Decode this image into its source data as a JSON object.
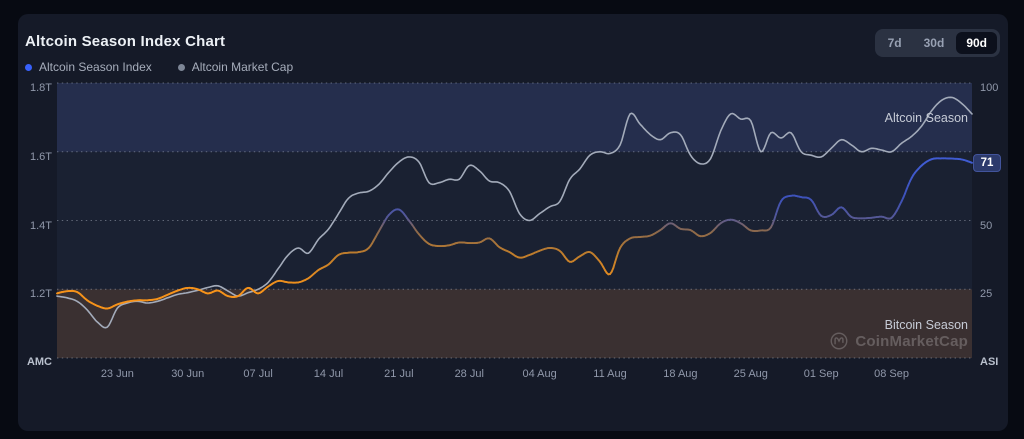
{
  "header": {
    "title": "Altcoin Season Index Chart"
  },
  "legend": [
    {
      "label": "Altcoin Season Index",
      "color": "#3861fb"
    },
    {
      "label": "Altcoin Market Cap",
      "color": "#7d8696"
    }
  ],
  "range_buttons": [
    {
      "label": "7d",
      "active": false
    },
    {
      "label": "30d",
      "active": false
    },
    {
      "label": "90d",
      "active": true
    }
  ],
  "axes": {
    "left_title": "AMC",
    "right_title": "ASI",
    "left_ticks": [
      {
        "label": "1.8T",
        "row": 0
      },
      {
        "label": "1.6T",
        "row": 1
      },
      {
        "label": "1.4T",
        "row": 2
      },
      {
        "label": "1.2T",
        "row": 3
      }
    ],
    "right_ticks": [
      {
        "label": "100",
        "row": 0
      },
      {
        "label": "50",
        "row": 2
      },
      {
        "label": "25",
        "row": 3
      }
    ]
  },
  "watermark": {
    "text": "CoinMarketCap"
  },
  "colors": {
    "plot_bg": "#1a2132",
    "grid": "rgba(170,178,192,0.5)",
    "amc_line": "#a3abba",
    "asi_color_stops": [
      [
        25,
        "#f7931a"
      ],
      [
        38,
        "#be7d2d"
      ],
      [
        46,
        "#8c694b"
      ],
      [
        51,
        "#555896"
      ],
      [
        58,
        "#3e52b9"
      ],
      [
        70,
        "#405cd2"
      ]
    ]
  },
  "chart_data": {
    "type": "line",
    "title": "Altcoin Season Index Chart",
    "x_labels": [
      "23 Jun",
      "30 Jun",
      "07 Jul",
      "14 Jul",
      "21 Jul",
      "28 Jul",
      "04 Aug",
      "11 Aug",
      "18 Aug",
      "25 Aug",
      "01 Sep",
      "08 Sep"
    ],
    "x_tick_days": [
      6,
      13,
      20,
      27,
      34,
      41,
      48,
      55,
      62,
      69,
      76,
      83
    ],
    "y_left": {
      "label": "AMC",
      "unit": "T",
      "range": [
        1.0,
        1.8
      ],
      "ticks": [
        "1.8T",
        "1.6T",
        "1.4T",
        "1.2T"
      ]
    },
    "y_right": {
      "label": "ASI",
      "range": [
        0,
        100
      ],
      "ticks": [
        100,
        50,
        25
      ]
    },
    "grid": "dotted-horizontal",
    "legend_position": "top-left",
    "current_value": 71,
    "bands": [
      {
        "label": "Altcoin Season",
        "axis": "right",
        "from": 75,
        "to": 100,
        "color": "#252e4d"
      },
      {
        "label": "Bitcoin Season",
        "axis": "right",
        "from": 0,
        "to": 25,
        "color": "#3a3031"
      }
    ],
    "series": [
      {
        "name": "Altcoin Season Index",
        "axis": "right",
        "style": "value-gradient-orange-to-blue",
        "values": [
          23.5,
          24.3,
          24,
          21,
          19,
          18,
          19.5,
          20.5,
          21,
          21,
          21.5,
          23,
          24.5,
          25.5,
          25,
          23.5,
          24.5,
          22.5,
          22.5,
          25.5,
          23.5,
          26,
          28,
          27.5,
          27.5,
          29,
          32,
          34,
          37.5,
          38.3,
          38.5,
          40,
          46,
          52,
          54,
          50,
          45,
          41.5,
          40.7,
          41,
          42,
          41.8,
          42,
          43.5,
          40.3,
          38.5,
          36.5,
          37.5,
          39,
          40,
          39,
          35,
          37,
          38.5,
          35,
          30.5,
          40,
          43.5,
          44,
          44.5,
          46.5,
          49,
          47,
          46.5,
          44.3,
          45.5,
          49,
          50.3,
          49,
          46.4,
          46.4,
          47.5,
          57,
          59,
          58.5,
          57.5,
          51.7,
          52,
          54.8,
          51.3,
          50.8,
          51,
          51.4,
          51,
          57,
          65.5,
          70,
          72.3,
          72.6,
          72.5,
          72.2,
          71
        ]
      },
      {
        "name": "Altcoin Market Cap",
        "axis": "left",
        "color": "#a3abba",
        "values": [
          1.18,
          1.175,
          1.165,
          1.14,
          1.105,
          1.09,
          1.145,
          1.16,
          1.165,
          1.16,
          1.165,
          1.175,
          1.185,
          1.19,
          1.197,
          1.205,
          1.21,
          1.195,
          1.18,
          1.19,
          1.2,
          1.22,
          1.26,
          1.3,
          1.32,
          1.305,
          1.345,
          1.375,
          1.42,
          1.465,
          1.48,
          1.485,
          1.505,
          1.54,
          1.57,
          1.585,
          1.57,
          1.51,
          1.51,
          1.52,
          1.52,
          1.56,
          1.545,
          1.515,
          1.51,
          1.485,
          1.42,
          1.4,
          1.42,
          1.44,
          1.455,
          1.52,
          1.55,
          1.59,
          1.6,
          1.595,
          1.62,
          1.71,
          1.68,
          1.65,
          1.635,
          1.655,
          1.65,
          1.59,
          1.565,
          1.58,
          1.66,
          1.71,
          1.695,
          1.69,
          1.6,
          1.655,
          1.64,
          1.655,
          1.6,
          1.59,
          1.585,
          1.61,
          1.635,
          1.62,
          1.6,
          1.61,
          1.605,
          1.6,
          1.625,
          1.645,
          1.675,
          1.72,
          1.75,
          1.758,
          1.74,
          1.71
        ]
      }
    ]
  }
}
